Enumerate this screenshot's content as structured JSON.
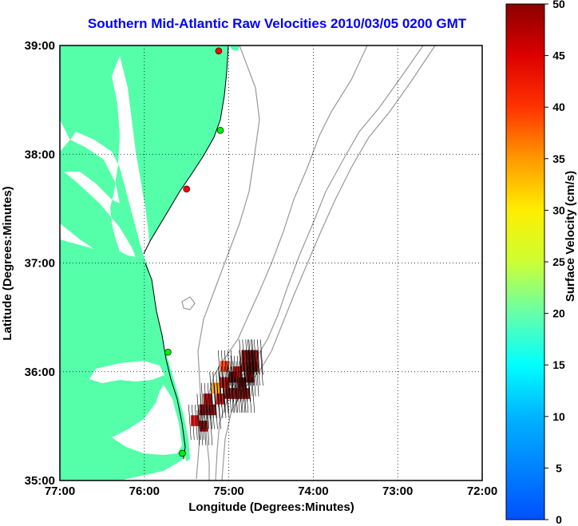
{
  "title": "Southern Mid-Atlantic Raw Velocities 2010/03/05 0200 GMT",
  "x_axis": {
    "label": "Longitude (Degrees:Minutes)",
    "ticks": [
      {
        "value": -77,
        "label": "77:00"
      },
      {
        "value": -76,
        "label": "76:00"
      },
      {
        "value": -75,
        "label": "75:00"
      },
      {
        "value": -74,
        "label": "74:00"
      },
      {
        "value": -73,
        "label": "73:00"
      },
      {
        "value": -72,
        "label": "72:00"
      }
    ],
    "range": [
      -77,
      -72
    ]
  },
  "y_axis": {
    "label": "Latitude (Degrees:Minutes)",
    "ticks": [
      {
        "value": 35,
        "label": "35:00"
      },
      {
        "value": 36,
        "label": "36:00"
      },
      {
        "value": 37,
        "label": "37:00"
      },
      {
        "value": 38,
        "label": "38:00"
      },
      {
        "value": 39,
        "label": "39:00"
      }
    ],
    "range": [
      35,
      39
    ]
  },
  "colorbar": {
    "label": "Surface Velocity (cm/s)",
    "min": 0,
    "max": 50,
    "ticks": [
      "0",
      "5",
      "10",
      "15",
      "20",
      "25",
      "30",
      "35",
      "40",
      "45",
      "50"
    ]
  },
  "colors": {
    "land": "#55ffaa",
    "title": "#0000ff",
    "isobath": "#999999",
    "site_active": "#00ee00",
    "site_inactive": "#ff0000"
  },
  "chart_data": {
    "type": "map",
    "grid": true,
    "radar_sites": [
      {
        "lon": -75.12,
        "lat": 38.95,
        "status": "inactive"
      },
      {
        "lon": -75.1,
        "lat": 38.22,
        "status": "active"
      },
      {
        "lon": -75.5,
        "lat": 37.68,
        "status": "inactive"
      },
      {
        "lon": -75.72,
        "lat": 36.18,
        "status": "active"
      },
      {
        "lon": -75.55,
        "lat": 35.25,
        "status": "active"
      }
    ],
    "velocity_cells": [
      {
        "lon": -74.8,
        "lat": 36.15,
        "speed": 48
      },
      {
        "lon": -74.7,
        "lat": 36.15,
        "speed": 50
      },
      {
        "lon": -74.8,
        "lat": 36.05,
        "speed": 47
      },
      {
        "lon": -74.7,
        "lat": 36.05,
        "speed": 49
      },
      {
        "lon": -74.9,
        "lat": 36.0,
        "speed": 44
      },
      {
        "lon": -75.05,
        "lat": 36.05,
        "speed": 38
      },
      {
        "lon": -74.95,
        "lat": 35.95,
        "speed": 45
      },
      {
        "lon": -75.05,
        "lat": 35.9,
        "speed": 40
      },
      {
        "lon": -74.85,
        "lat": 35.9,
        "speed": 46
      },
      {
        "lon": -74.75,
        "lat": 35.95,
        "speed": 48
      },
      {
        "lon": -75.15,
        "lat": 35.85,
        "speed": 30
      },
      {
        "lon": -75.1,
        "lat": 35.75,
        "speed": 42
      },
      {
        "lon": -75.25,
        "lat": 35.75,
        "speed": 44
      },
      {
        "lon": -75.3,
        "lat": 35.65,
        "speed": 47
      },
      {
        "lon": -75.2,
        "lat": 35.65,
        "speed": 45
      },
      {
        "lon": -75.0,
        "lat": 35.8,
        "speed": 46
      },
      {
        "lon": -74.9,
        "lat": 35.8,
        "speed": 48
      },
      {
        "lon": -74.8,
        "lat": 35.8,
        "speed": 49
      },
      {
        "lon": -75.4,
        "lat": 35.55,
        "speed": 43
      },
      {
        "lon": -75.3,
        "lat": 35.5,
        "speed": 46
      }
    ]
  }
}
